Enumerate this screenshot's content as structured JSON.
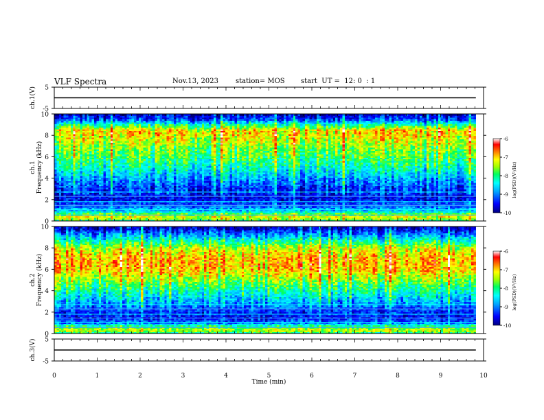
{
  "header": {
    "title": "VLF Spectra",
    "date": "Nov.13, 2023",
    "station": "station= MOS",
    "start": "start  UT =  12: 0  : 1"
  },
  "chart_data": [
    {
      "id": "ch1-voltage",
      "type": "line",
      "title": "",
      "ylabel": "ch.1(V)",
      "xlim": [
        0,
        10
      ],
      "ylim": [
        -5,
        5
      ],
      "yticks": [
        "5",
        "-5"
      ],
      "x": [
        0,
        9.82
      ],
      "y": [
        0,
        0
      ]
    },
    {
      "id": "ch1-spectrogram",
      "type": "heatmap",
      "ylabel": "ch.1\nFrequency (kHz)",
      "xlim": [
        0,
        10
      ],
      "ylim": [
        0,
        10
      ],
      "yticks": [
        "0",
        "2",
        "4",
        "6",
        "8",
        "10"
      ],
      "data_x_end": 9.82,
      "colorbar": {
        "label": "log(PSD)(V²/Hz)",
        "range": [
          -10,
          -6
        ],
        "ticks": [
          "-6",
          "-7",
          "-8",
          "-9",
          "-10"
        ]
      },
      "intensity_profile": [
        {
          "f": 0.0,
          "level": -8.3
        },
        {
          "f": 0.3,
          "level": -7.2
        },
        {
          "f": 0.6,
          "level": -7.6
        },
        {
          "f": 1.0,
          "level": -8.8
        },
        {
          "f": 1.5,
          "level": -9.2
        },
        {
          "f": 2.0,
          "level": -9.6
        },
        {
          "f": 2.5,
          "level": -9.5
        },
        {
          "f": 3.0,
          "level": -9.4
        },
        {
          "f": 4.0,
          "level": -8.9
        },
        {
          "f": 5.0,
          "level": -8.3
        },
        {
          "f": 6.0,
          "level": -7.9
        },
        {
          "f": 7.0,
          "level": -7.6
        },
        {
          "f": 8.0,
          "level": -7.2
        },
        {
          "f": 8.5,
          "level": -7.1
        },
        {
          "f": 9.0,
          "level": -8.2
        },
        {
          "f": 9.5,
          "level": -9.3
        },
        {
          "f": 10.0,
          "level": -9.8
        }
      ]
    },
    {
      "id": "ch2-spectrogram",
      "type": "heatmap",
      "ylabel": "ch.2\nFrequency (kHz)",
      "xlim": [
        0,
        10
      ],
      "ylim": [
        0,
        10
      ],
      "yticks": [
        "0",
        "2",
        "4",
        "6",
        "8",
        "10"
      ],
      "data_x_end": 9.82,
      "colorbar": {
        "label": "log(PSD)(V²/Hz)",
        "range": [
          -10,
          -6
        ],
        "ticks": [
          "-6",
          "-7",
          "-8",
          "-9",
          "-10"
        ]
      },
      "intensity_profile": [
        {
          "f": 0.0,
          "level": -8.2
        },
        {
          "f": 0.3,
          "level": -7.3
        },
        {
          "f": 0.6,
          "level": -7.8
        },
        {
          "f": 1.0,
          "level": -9.0
        },
        {
          "f": 1.5,
          "level": -9.5
        },
        {
          "f": 2.0,
          "level": -9.4
        },
        {
          "f": 3.0,
          "level": -8.8
        },
        {
          "f": 4.0,
          "level": -8.2
        },
        {
          "f": 5.0,
          "level": -7.6
        },
        {
          "f": 6.0,
          "level": -7.0
        },
        {
          "f": 7.0,
          "level": -6.9
        },
        {
          "f": 8.0,
          "level": -7.4
        },
        {
          "f": 8.5,
          "level": -8.0
        },
        {
          "f": 9.0,
          "level": -8.6
        },
        {
          "f": 9.5,
          "level": -9.3
        },
        {
          "f": 10.0,
          "level": -9.8
        }
      ]
    },
    {
      "id": "ch3-voltage",
      "type": "line",
      "ylabel": "ch.3(V)",
      "xlabel": "Time  (min)",
      "xlim": [
        0,
        10
      ],
      "ylim": [
        -5,
        5
      ],
      "yticks": [
        "5",
        "-5"
      ],
      "xticks": [
        "0",
        "1",
        "2",
        "3",
        "4",
        "5",
        "6",
        "7",
        "8",
        "9",
        "10"
      ],
      "x": [
        0,
        9.82
      ],
      "y": [
        0,
        0
      ]
    }
  ],
  "colors": {
    "colormap": [
      "#000080",
      "#0000ff",
      "#0080ff",
      "#00ffff",
      "#00ff80",
      "#80ff00",
      "#ffff00",
      "#ff8000",
      "#ff0000",
      "#ffffff"
    ],
    "axis": "#000000",
    "trace": "#000000"
  }
}
